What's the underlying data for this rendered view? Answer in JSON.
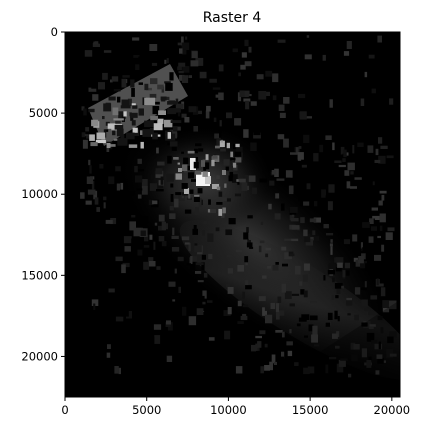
{
  "figure": {
    "title": "Raster 4",
    "colormap": "gray",
    "background_color": "#000000",
    "x_ticks": [
      0,
      5000,
      10000,
      15000,
      20000
    ],
    "y_ticks": [
      0,
      5000,
      10000,
      15000,
      20000
    ],
    "x_range": [
      0,
      20500
    ],
    "y_range": [
      22500,
      0
    ],
    "x_tick_labels": [
      "0",
      "5000",
      "10000",
      "15000",
      "20000"
    ],
    "y_tick_labels": [
      "0",
      "5000",
      "10000",
      "15000",
      "20000"
    ]
  }
}
